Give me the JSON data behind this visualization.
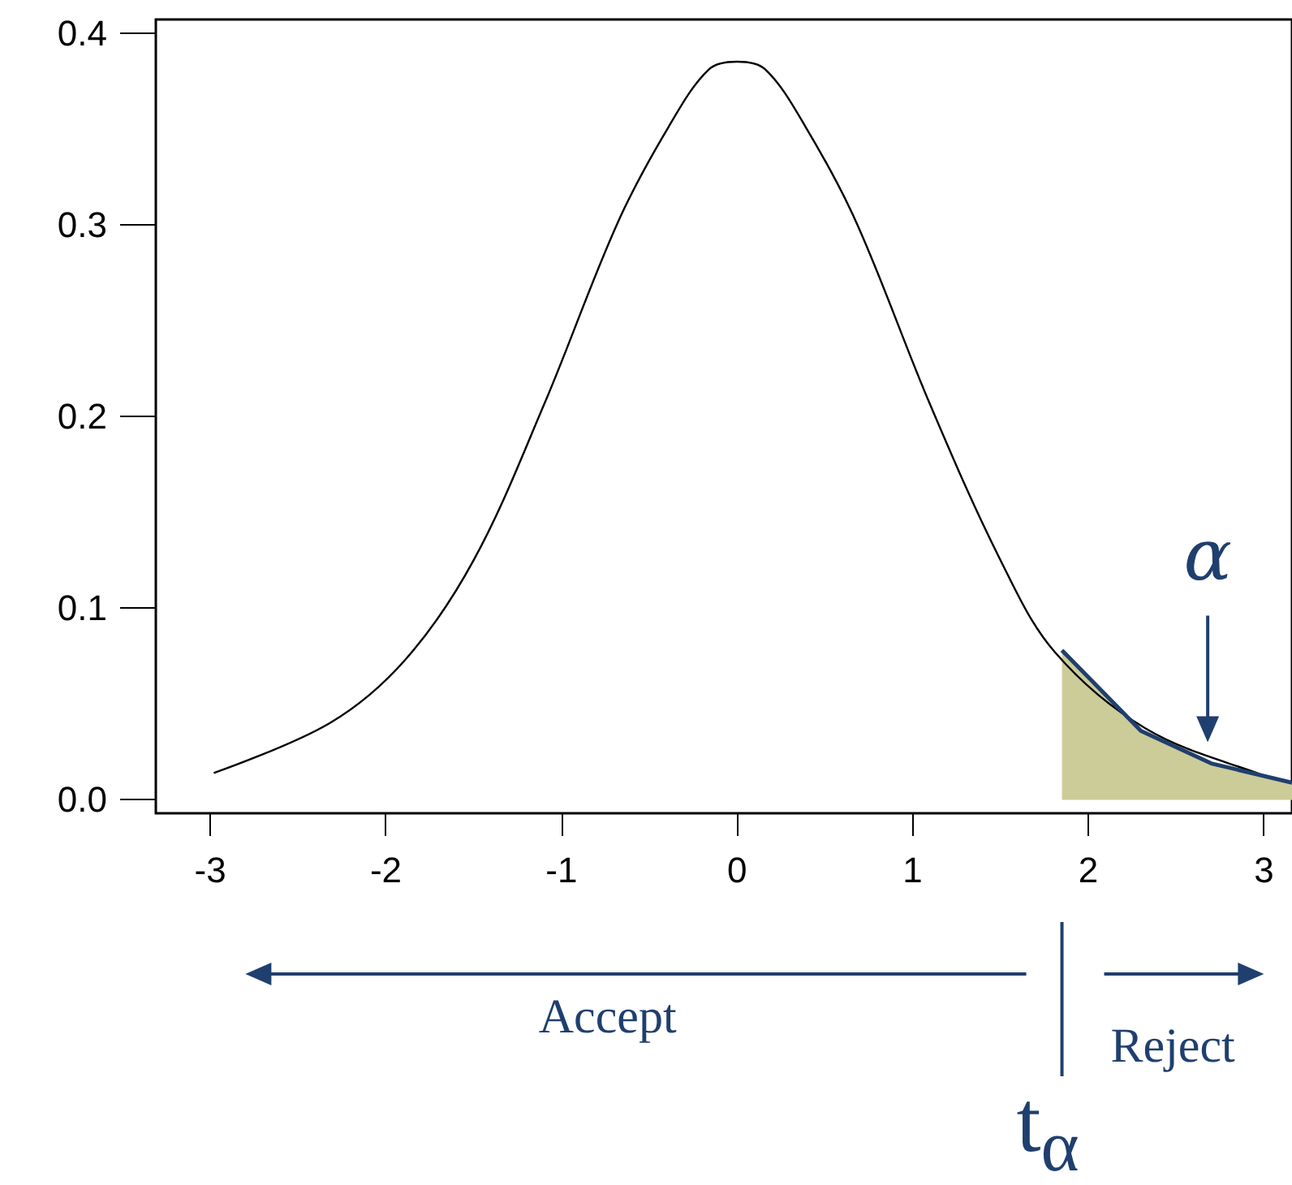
{
  "chart_data": {
    "type": "line",
    "xlim": [
      -3.31,
      3.16
    ],
    "ylim": [
      -0.007,
      0.407
    ],
    "xticks": [
      -3,
      -2,
      -1,
      0,
      1,
      2,
      3
    ],
    "yticks": [
      {
        "value": 0,
        "label": "0.0"
      },
      {
        "value": 0.1,
        "label": "0.1"
      },
      {
        "value": 0.2,
        "label": "0.2"
      },
      {
        "value": 0.3,
        "label": "0.3"
      },
      {
        "value": 0.4,
        "label": "0.4"
      }
    ],
    "grid": false,
    "marker": "none",
    "line_style": "solid",
    "series": [
      {
        "color": "#000000",
        "x": [
          -2.98,
          -2.32,
          -1.89,
          -1.5,
          -1.1,
          -0.68,
          -0.39,
          -0.16,
          0,
          0.16,
          0.39,
          0.68,
          1.1,
          1.5,
          1.81,
          2.33,
          2.99,
          3.16
        ],
        "values": [
          0.014,
          0.04,
          0.073,
          0.125,
          0.206,
          0.301,
          0.351,
          0.381,
          0.385,
          0.381,
          0.351,
          0.301,
          0.206,
          0.125,
          0.077,
          0.037,
          0.013,
          0.009
        ]
      },
      {
        "type": "area",
        "color": "#cccc99",
        "x": [
          1.85,
          2.3,
          2.7,
          3.16
        ],
        "values": [
          0.078,
          0.036,
          0.019,
          0.009
        ]
      },
      {
        "color": "#1f3f6e",
        "x": [
          1.85,
          2.3,
          2.7,
          3.16
        ],
        "values": [
          0.078,
          0.036,
          0.019,
          0.009
        ]
      }
    ],
    "annotations": [
      "α",
      "Accept",
      "Reject",
      "t$_{α}$"
    ]
  }
}
